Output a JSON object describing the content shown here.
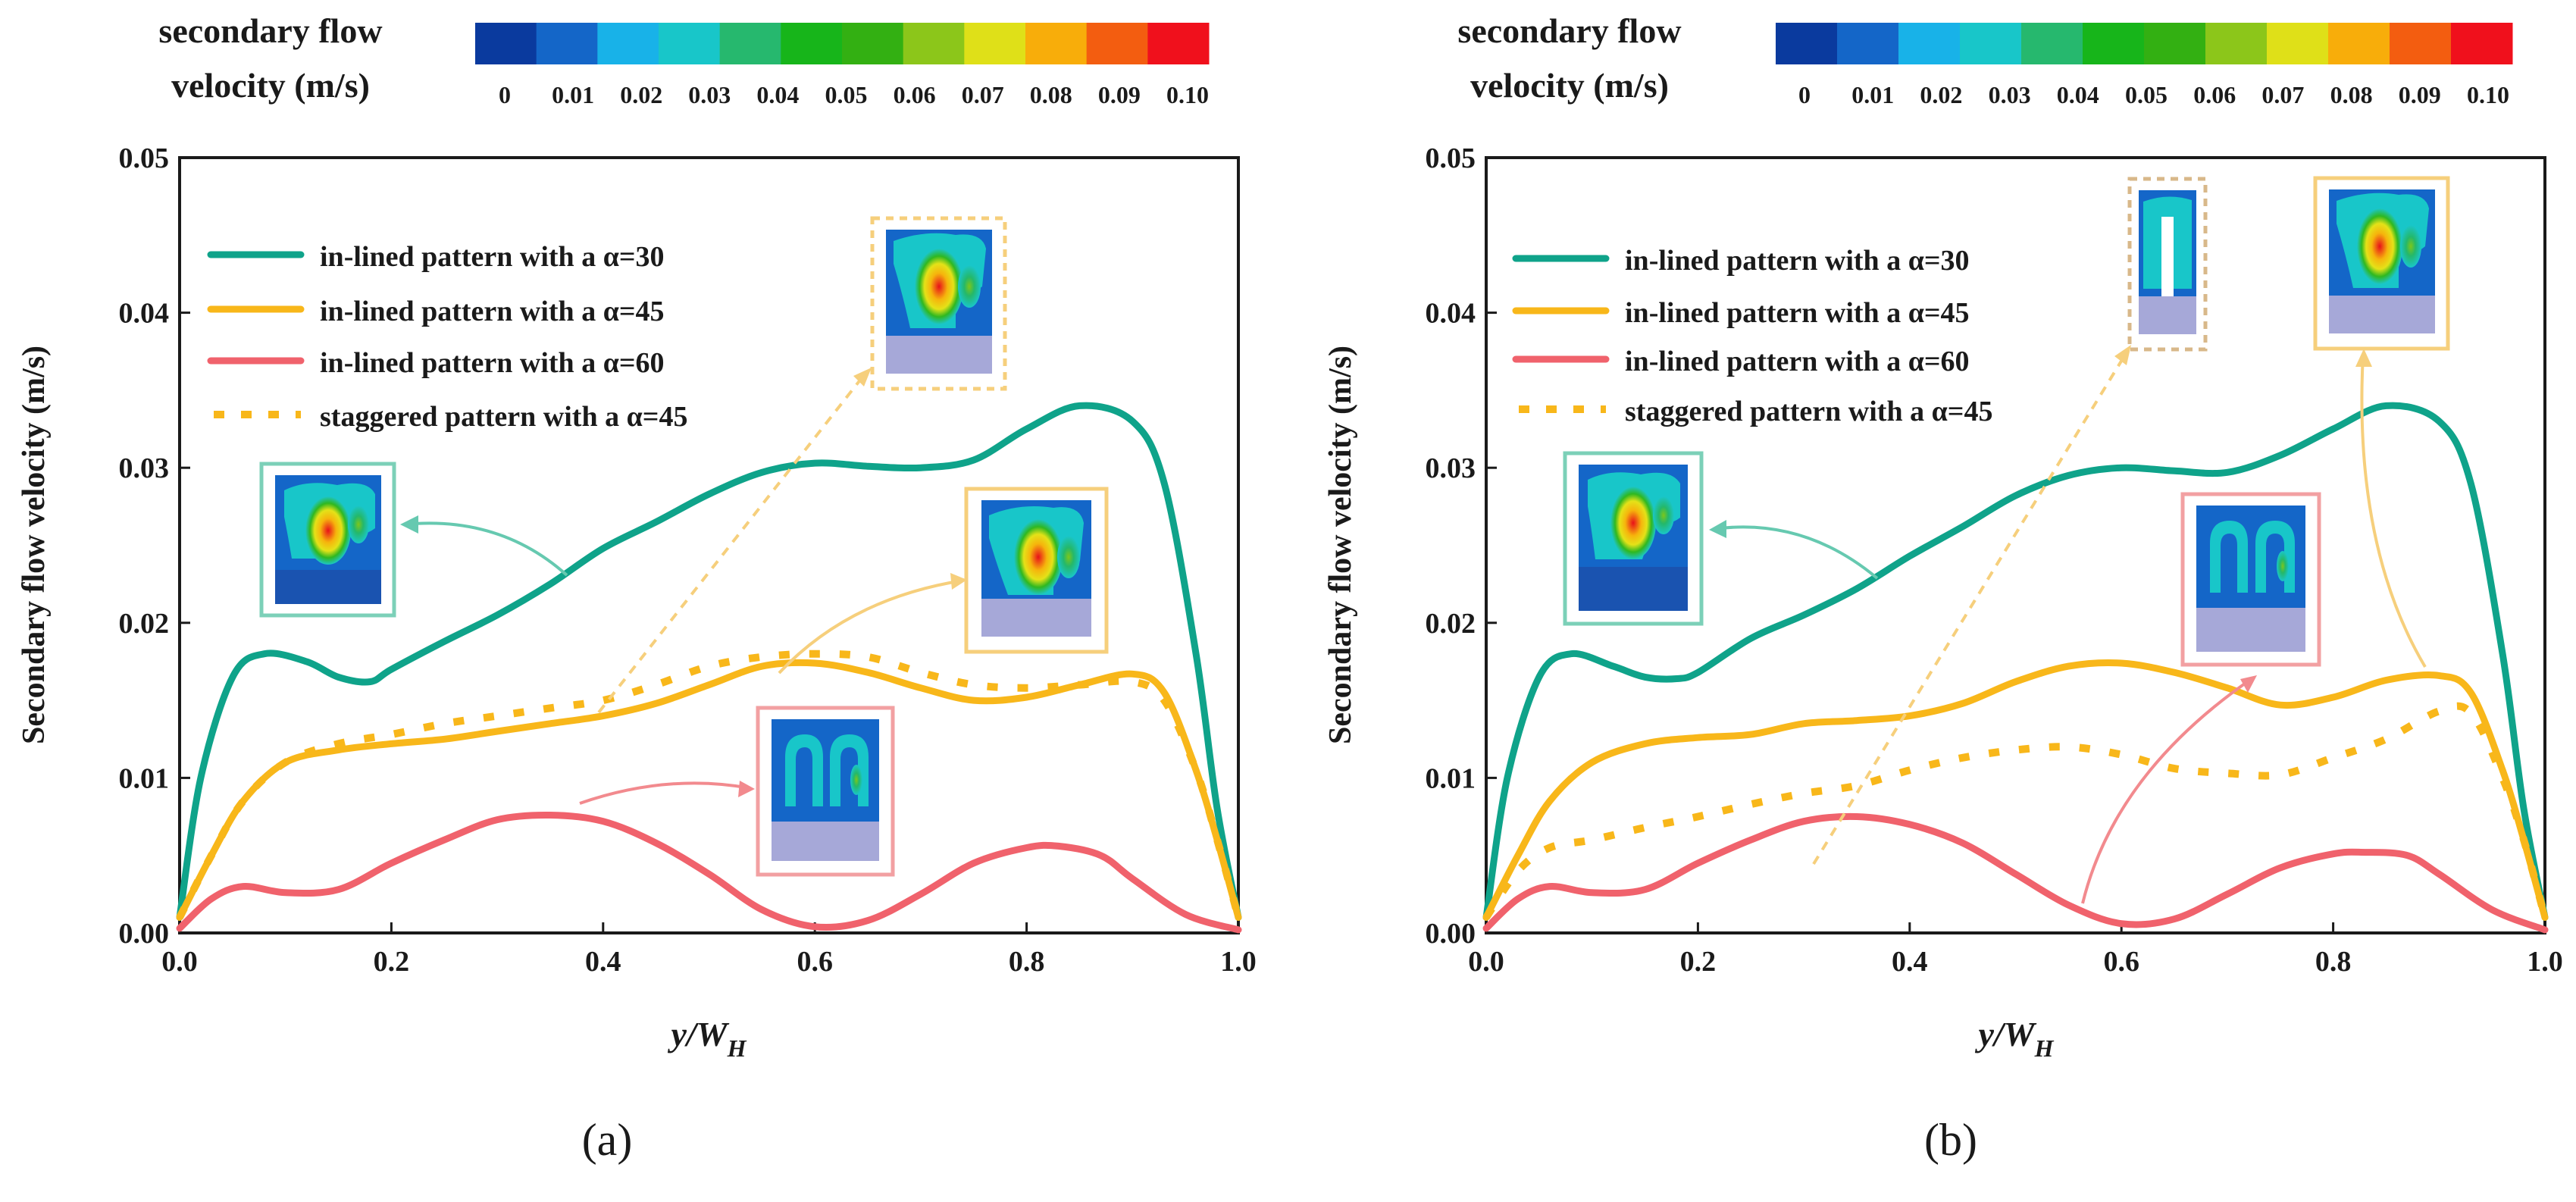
{
  "colorbar": {
    "title_line1": "secondary flow",
    "title_line2": "velocity (m/s)",
    "ticks": [
      "0",
      "0.01",
      "0.02",
      "0.03",
      "0.04",
      "0.05",
      "0.06",
      "0.07",
      "0.08",
      "0.09",
      "0.10"
    ],
    "colors": [
      "#0a3a9e",
      "#1466c8",
      "#18b2e8",
      "#18c6c9",
      "#26b86e",
      "#17b51a",
      "#33b012",
      "#8cc61a",
      "#dfe018",
      "#f8ad0a",
      "#f35d10",
      "#f0101c"
    ]
  },
  "colors": {
    "alpha30": "#0fa38a",
    "alpha45": "#f8b71a",
    "alpha60": "#f0626c",
    "staggered45": "#f8b71a",
    "axis": "#1a1a1a"
  },
  "chart_data": [
    {
      "panel": "(a)",
      "type": "line",
      "title": "",
      "xlabel_main": "y/W",
      "xlabel_sub": "H",
      "ylabel": "Secondary flow velocity (m/s)",
      "xlim": [
        0,
        1.0
      ],
      "ylim": [
        0,
        0.05
      ],
      "xticks": [
        "0.0",
        "0.2",
        "0.4",
        "0.6",
        "0.8",
        "1.0"
      ],
      "yticks": [
        "0.00",
        "0.01",
        "0.02",
        "0.03",
        "0.04",
        "0.05"
      ],
      "legend_position": "top-left",
      "series": [
        {
          "name": "in-lined pattern with a α=30",
          "key": "alpha30",
          "style": "solid",
          "x": [
            0,
            0.02,
            0.05,
            0.08,
            0.12,
            0.15,
            0.18,
            0.2,
            0.25,
            0.3,
            0.35,
            0.4,
            0.45,
            0.5,
            0.55,
            0.6,
            0.65,
            0.7,
            0.75,
            0.8,
            0.85,
            0.9,
            0.93,
            0.96,
            0.98,
            1.0
          ],
          "y": [
            0.001,
            0.01,
            0.0165,
            0.018,
            0.0175,
            0.0165,
            0.0162,
            0.017,
            0.0188,
            0.0205,
            0.0225,
            0.0248,
            0.0265,
            0.0283,
            0.0297,
            0.0303,
            0.0301,
            0.03,
            0.0305,
            0.0325,
            0.034,
            0.033,
            0.029,
            0.018,
            0.008,
            0.001
          ]
        },
        {
          "name": "in-lined pattern with a α=45",
          "key": "alpha45",
          "style": "solid",
          "x": [
            0,
            0.03,
            0.06,
            0.1,
            0.15,
            0.2,
            0.25,
            0.3,
            0.35,
            0.4,
            0.45,
            0.5,
            0.55,
            0.6,
            0.65,
            0.7,
            0.75,
            0.8,
            0.85,
            0.9,
            0.93,
            0.96,
            0.98,
            1.0
          ],
          "y": [
            0.001,
            0.005,
            0.0085,
            0.011,
            0.0118,
            0.0122,
            0.0125,
            0.013,
            0.0135,
            0.014,
            0.0148,
            0.016,
            0.0172,
            0.0174,
            0.0168,
            0.0158,
            0.015,
            0.0152,
            0.016,
            0.0167,
            0.0155,
            0.0105,
            0.006,
            0.001
          ]
        },
        {
          "name": "in-lined pattern with a α=60",
          "key": "alpha60",
          "style": "solid",
          "x": [
            0,
            0.03,
            0.06,
            0.1,
            0.15,
            0.2,
            0.25,
            0.3,
            0.35,
            0.4,
            0.45,
            0.5,
            0.55,
            0.6,
            0.65,
            0.7,
            0.75,
            0.8,
            0.83,
            0.87,
            0.9,
            0.95,
            1.0
          ],
          "y": [
            0.0003,
            0.0022,
            0.003,
            0.0026,
            0.0028,
            0.0045,
            0.006,
            0.0073,
            0.0076,
            0.0072,
            0.0058,
            0.0038,
            0.0015,
            0.0004,
            0.0008,
            0.0025,
            0.0045,
            0.0055,
            0.0056,
            0.005,
            0.0035,
            0.0012,
            0.0002
          ]
        },
        {
          "name": "staggered pattern with a α=45",
          "key": "staggered45",
          "style": "dotted",
          "x": [
            0,
            0.03,
            0.06,
            0.1,
            0.15,
            0.2,
            0.25,
            0.3,
            0.35,
            0.4,
            0.45,
            0.5,
            0.55,
            0.6,
            0.65,
            0.7,
            0.75,
            0.8,
            0.85,
            0.9,
            0.93,
            0.96,
            0.98,
            1.0
          ],
          "y": [
            0.001,
            0.005,
            0.0085,
            0.011,
            0.0122,
            0.0128,
            0.0135,
            0.014,
            0.0145,
            0.015,
            0.016,
            0.0172,
            0.0178,
            0.018,
            0.0178,
            0.0168,
            0.016,
            0.0158,
            0.016,
            0.0162,
            0.015,
            0.0105,
            0.006,
            0.001
          ]
        }
      ]
    },
    {
      "panel": "(b)",
      "type": "line",
      "title": "",
      "xlabel_main": "y/W",
      "xlabel_sub": "H",
      "ylabel": "Secondary flow velocity (m/s)",
      "xlim": [
        0,
        1.0
      ],
      "ylim": [
        0,
        0.05
      ],
      "xticks": [
        "0.0",
        "0.2",
        "0.4",
        "0.6",
        "0.8",
        "1.0"
      ],
      "yticks": [
        "0.00",
        "0.01",
        "0.02",
        "0.03",
        "0.04",
        "0.05"
      ],
      "legend_position": "top-left",
      "series": [
        {
          "name": "in-lined pattern with a α=30",
          "key": "alpha30",
          "style": "solid",
          "x": [
            0,
            0.02,
            0.05,
            0.08,
            0.12,
            0.15,
            0.18,
            0.2,
            0.25,
            0.3,
            0.35,
            0.4,
            0.45,
            0.5,
            0.55,
            0.6,
            0.65,
            0.7,
            0.75,
            0.8,
            0.85,
            0.9,
            0.93,
            0.96,
            0.98,
            1.0
          ],
          "y": [
            0.001,
            0.01,
            0.0165,
            0.018,
            0.0172,
            0.0165,
            0.0164,
            0.0168,
            0.019,
            0.0205,
            0.0222,
            0.0243,
            0.0262,
            0.0282,
            0.0295,
            0.03,
            0.0298,
            0.0297,
            0.0308,
            0.0325,
            0.034,
            0.033,
            0.029,
            0.018,
            0.008,
            0.001
          ]
        },
        {
          "name": "in-lined pattern with a α=45",
          "key": "alpha45",
          "style": "solid",
          "x": [
            0,
            0.03,
            0.06,
            0.1,
            0.15,
            0.2,
            0.25,
            0.3,
            0.35,
            0.4,
            0.45,
            0.5,
            0.55,
            0.6,
            0.65,
            0.7,
            0.75,
            0.8,
            0.85,
            0.9,
            0.93,
            0.96,
            0.98,
            1.0
          ],
          "y": [
            0.001,
            0.005,
            0.0085,
            0.011,
            0.0122,
            0.0126,
            0.0128,
            0.0135,
            0.0137,
            0.014,
            0.0148,
            0.0162,
            0.0172,
            0.0174,
            0.0168,
            0.0158,
            0.0147,
            0.0152,
            0.0163,
            0.0166,
            0.0155,
            0.0105,
            0.006,
            0.001
          ]
        },
        {
          "name": "in-lined pattern with a α=60",
          "key": "alpha60",
          "style": "solid",
          "x": [
            0,
            0.03,
            0.06,
            0.1,
            0.15,
            0.2,
            0.25,
            0.3,
            0.35,
            0.4,
            0.45,
            0.5,
            0.55,
            0.6,
            0.65,
            0.7,
            0.75,
            0.8,
            0.83,
            0.87,
            0.9,
            0.95,
            1.0
          ],
          "y": [
            0.0003,
            0.0022,
            0.003,
            0.0026,
            0.0028,
            0.0045,
            0.006,
            0.0072,
            0.0075,
            0.007,
            0.0058,
            0.0038,
            0.0018,
            0.0006,
            0.0009,
            0.0025,
            0.0042,
            0.0051,
            0.0052,
            0.005,
            0.0038,
            0.0015,
            0.0002
          ]
        },
        {
          "name": "staggered pattern with a α=45",
          "key": "staggered45",
          "style": "dotted",
          "x": [
            0,
            0.03,
            0.06,
            0.1,
            0.15,
            0.2,
            0.25,
            0.3,
            0.35,
            0.4,
            0.45,
            0.5,
            0.55,
            0.6,
            0.65,
            0.7,
            0.75,
            0.8,
            0.85,
            0.9,
            0.93,
            0.96,
            0.98,
            1.0
          ],
          "y": [
            0.001,
            0.004,
            0.0055,
            0.006,
            0.0068,
            0.0075,
            0.0083,
            0.009,
            0.0095,
            0.0105,
            0.0113,
            0.0118,
            0.012,
            0.0115,
            0.0106,
            0.0103,
            0.0102,
            0.0113,
            0.0125,
            0.0143,
            0.0142,
            0.01,
            0.006,
            0.001
          ]
        }
      ]
    }
  ]
}
